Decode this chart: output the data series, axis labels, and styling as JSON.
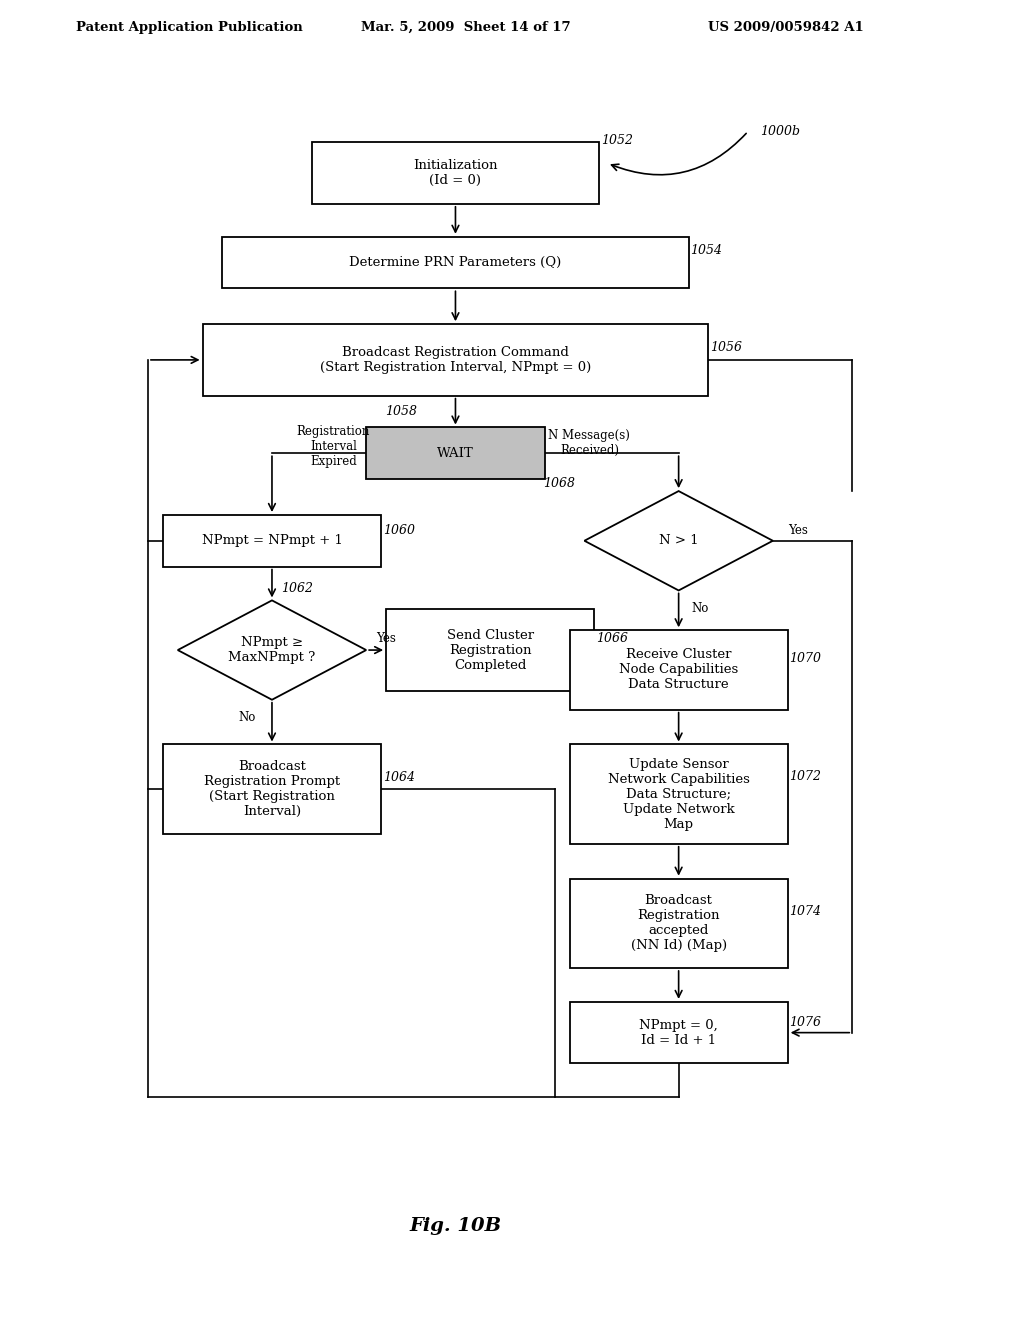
{
  "background": "#ffffff",
  "header_left": "Patent Application Publication",
  "header_mid": "Mar. 5, 2009  Sheet 14 of 17",
  "header_right": "US 2009/0059842 A1",
  "fig_label": "Fig. 10B",
  "font_family": "DejaVu Serif"
}
